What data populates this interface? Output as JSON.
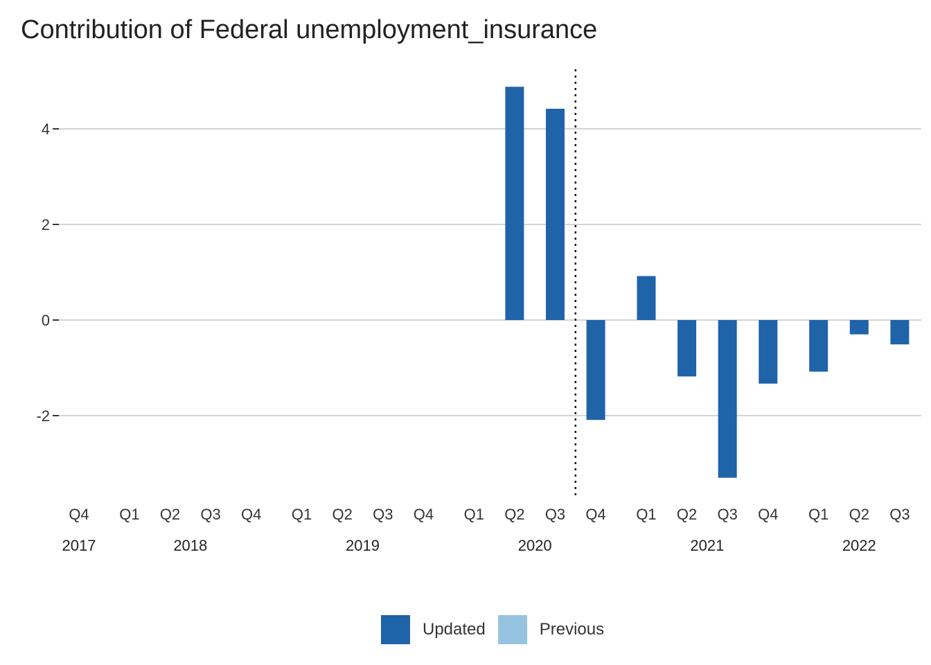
{
  "chart_data": {
    "type": "bar",
    "title": "Contribution of Federal unemployment_insurance",
    "xlabel": "",
    "ylabel": "",
    "ylim": [
      -3.65,
      5.2
    ],
    "yticks": [
      -2,
      0,
      2,
      4
    ],
    "ytick_labels": [
      "-2",
      "0",
      "2",
      "4"
    ],
    "grid": "horizontal",
    "categories": [
      "2017 Q4",
      "2018 Q1",
      "2018 Q2",
      "2018 Q3",
      "2018 Q4",
      "2019 Q1",
      "2019 Q2",
      "2019 Q3",
      "2019 Q4",
      "2020 Q1",
      "2020 Q2",
      "2020 Q3",
      "2020 Q4",
      "2021 Q1",
      "2021 Q2",
      "2021 Q3",
      "2021 Q4",
      "2022 Q1",
      "2022 Q2",
      "2022 Q3"
    ],
    "quarter_labels": [
      "Q4",
      "Q1",
      "Q2",
      "Q3",
      "Q4",
      "Q1",
      "Q2",
      "Q3",
      "Q4",
      "Q1",
      "Q2",
      "Q3",
      "Q4",
      "Q1",
      "Q2",
      "Q3",
      "Q4",
      "Q1",
      "Q2",
      "Q3"
    ],
    "years": [
      {
        "label": "2017",
        "first": 0,
        "last": 0
      },
      {
        "label": "2018",
        "first": 1,
        "last": 4
      },
      {
        "label": "2019",
        "first": 5,
        "last": 8
      },
      {
        "label": "2020",
        "first": 9,
        "last": 12
      },
      {
        "label": "2021",
        "first": 13,
        "last": 16
      },
      {
        "label": "2022",
        "first": 17,
        "last": 19
      }
    ],
    "series": [
      {
        "name": "Updated",
        "color": "#1f63a8",
        "values": [
          0,
          0,
          0,
          0,
          0,
          0,
          0,
          0,
          0,
          0,
          4.88,
          4.42,
          -2.09,
          0.92,
          -1.18,
          -3.3,
          -1.33,
          -1.08,
          -0.3,
          -0.51
        ]
      },
      {
        "name": "Previous",
        "color": "#96c4e0",
        "values": [
          null,
          null,
          null,
          null,
          null,
          null,
          null,
          null,
          null,
          null,
          null,
          null,
          null,
          null,
          null,
          null,
          null,
          null,
          null,
          null
        ]
      }
    ],
    "reference_line": {
      "style": "dotted",
      "between": [
        "2020 Q3",
        "2020 Q4"
      ]
    },
    "legend_position": "bottom"
  }
}
